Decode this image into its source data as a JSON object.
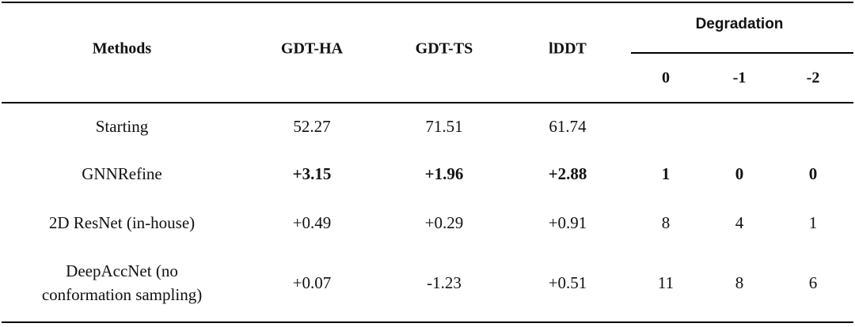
{
  "table": {
    "headers": {
      "methods": "Methods",
      "gdt_ha": "GDT-HA",
      "gdt_ts": "GDT-TS",
      "lddt": "lDDT",
      "degradation": "Degradation",
      "deg_0": "0",
      "deg_m1": "-1",
      "deg_m2": "-2"
    },
    "rows": [
      {
        "method": "Starting",
        "gdt_ha": "52.27",
        "gdt_ts": "71.51",
        "lddt": "61.74",
        "deg_0": "",
        "deg_m1": "",
        "deg_m2": ""
      },
      {
        "method": "GNNRefine",
        "gdt_ha": "+3.15",
        "gdt_ts": "+1.96",
        "lddt": "+2.88",
        "deg_0": "1",
        "deg_m1": "0",
        "deg_m2": "0"
      },
      {
        "method": "2D ResNet (in-house)",
        "gdt_ha": "+0.49",
        "gdt_ts": "+0.29",
        "lddt": "+0.91",
        "deg_0": "8",
        "deg_m1": "4",
        "deg_m2": "1"
      },
      {
        "method_line1": "DeepAccNet (no",
        "method_line2": "conformation sampling)",
        "gdt_ha": "+0.07",
        "gdt_ts": "-1.23",
        "lddt": "+0.51",
        "deg_0": "11",
        "deg_m1": "8",
        "deg_m2": "6"
      }
    ]
  }
}
